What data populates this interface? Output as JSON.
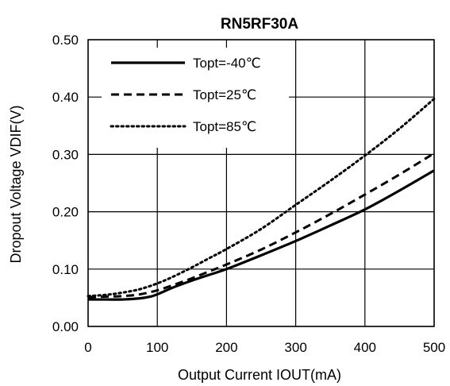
{
  "chart_data": {
    "type": "line",
    "title": "RN5RF30A",
    "xlabel": "Output Current IOUT(mA)",
    "ylabel": "Dropout Voltage VDIF(V)",
    "xlim": [
      0,
      500
    ],
    "ylim": [
      0,
      0.5
    ],
    "x_ticks": [
      0,
      100,
      200,
      300,
      400,
      500
    ],
    "x_tick_labels": [
      "0",
      "100",
      "200",
      "300",
      "400",
      "500"
    ],
    "y_ticks": [
      0,
      0.1,
      0.2,
      0.3,
      0.4,
      0.5
    ],
    "y_tick_labels": [
      "0.00",
      "0.10",
      "0.20",
      "0.30",
      "0.40",
      "0.50"
    ],
    "grid": true,
    "legend_position": "top-left",
    "series": [
      {
        "name": "Topt=-40℃",
        "style": "solid",
        "x": [
          0,
          25,
          50,
          75,
          90,
          100,
          125,
          150,
          175,
          200,
          250,
          300,
          350,
          400,
          450,
          500
        ],
        "y": [
          0.047,
          0.047,
          0.047,
          0.049,
          0.052,
          0.056,
          0.069,
          0.08,
          0.09,
          0.1,
          0.124,
          0.149,
          0.176,
          0.204,
          0.237,
          0.272
        ]
      },
      {
        "name": "Topt=25℃",
        "style": "dashed",
        "x": [
          0,
          25,
          50,
          75,
          100,
          125,
          150,
          175,
          200,
          250,
          300,
          350,
          400,
          450,
          500
        ],
        "y": [
          0.051,
          0.052,
          0.053,
          0.056,
          0.063,
          0.073,
          0.084,
          0.096,
          0.108,
          0.134,
          0.164,
          0.196,
          0.23,
          0.265,
          0.302
        ]
      },
      {
        "name": "Topt=85℃",
        "style": "dotted",
        "x": [
          0,
          25,
          50,
          75,
          100,
          125,
          150,
          175,
          200,
          250,
          300,
          350,
          400,
          450,
          500
        ],
        "y": [
          0.053,
          0.055,
          0.059,
          0.065,
          0.075,
          0.088,
          0.103,
          0.119,
          0.135,
          0.17,
          0.212,
          0.254,
          0.298,
          0.345,
          0.397
        ]
      }
    ]
  }
}
